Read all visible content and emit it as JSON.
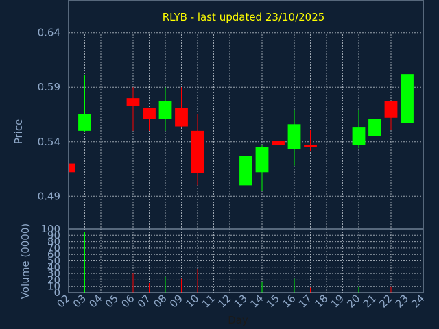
{
  "chart_data": [
    {
      "type": "candlestick",
      "title": "RLYB - last updated 23/10/2025",
      "ylabel": "Price",
      "ylim": [
        0.46,
        0.67
      ],
      "yticks": [
        0.49,
        0.54,
        0.59,
        0.64
      ],
      "ytick_labels": [
        "0.49",
        "0.54",
        "0.59",
        "0.64"
      ],
      "xlim": [
        2,
        24
      ],
      "x_ticks": [
        "02",
        "03",
        "04",
        "05",
        "06",
        "07",
        "08",
        "09",
        "10",
        "11",
        "12",
        "13",
        "14",
        "15",
        "16",
        "17",
        "18",
        "19",
        "20",
        "21",
        "22",
        "23",
        "24"
      ],
      "grid": true,
      "up_color": "#00ff00",
      "down_color": "#ff0000",
      "candles": [
        {
          "day": 2,
          "open": 0.52,
          "high": 0.52,
          "low": 0.512,
          "close": 0.512
        },
        {
          "day": 3,
          "open": 0.55,
          "high": 0.601,
          "low": 0.549,
          "close": 0.565
        },
        {
          "day": 6,
          "open": 0.58,
          "high": 0.59,
          "low": 0.55,
          "close": 0.573
        },
        {
          "day": 7,
          "open": 0.571,
          "high": 0.571,
          "low": 0.55,
          "close": 0.561
        },
        {
          "day": 8,
          "open": 0.561,
          "high": 0.59,
          "low": 0.55,
          "close": 0.577
        },
        {
          "day": 9,
          "open": 0.571,
          "high": 0.59,
          "low": 0.553,
          "close": 0.554
        },
        {
          "day": 10,
          "open": 0.55,
          "high": 0.565,
          "low": 0.5,
          "close": 0.511
        },
        {
          "day": 13,
          "open": 0.5,
          "high": 0.531,
          "low": 0.488,
          "close": 0.527
        },
        {
          "day": 14,
          "open": 0.512,
          "high": 0.537,
          "low": 0.495,
          "close": 0.535
        },
        {
          "day": 15,
          "open": 0.541,
          "high": 0.562,
          "low": 0.522,
          "close": 0.537
        },
        {
          "day": 16,
          "open": 0.533,
          "high": 0.569,
          "low": 0.518,
          "close": 0.556
        },
        {
          "day": 17,
          "open": 0.537,
          "high": 0.551,
          "low": 0.531,
          "close": 0.535
        },
        {
          "day": 20,
          "open": 0.537,
          "high": 0.569,
          "low": 0.534,
          "close": 0.553
        },
        {
          "day": 21,
          "open": 0.545,
          "high": 0.566,
          "low": 0.545,
          "close": 0.561
        },
        {
          "day": 22,
          "open": 0.577,
          "high": 0.577,
          "low": 0.551,
          "close": 0.562
        },
        {
          "day": 23,
          "open": 0.557,
          "high": 0.611,
          "low": 0.542,
          "close": 0.602
        }
      ]
    },
    {
      "type": "bar",
      "ylabel": "Volume (0000)",
      "xlabel": "Day",
      "ylim": [
        0,
        100
      ],
      "yticks": [
        0,
        10,
        20,
        30,
        40,
        50,
        60,
        70,
        80,
        90,
        100
      ],
      "ytick_labels": [
        "0",
        "10",
        "20",
        "30",
        "40",
        "50",
        "60",
        "70",
        "80",
        "90",
        "100"
      ],
      "bars": [
        {
          "day": 3,
          "value": 95,
          "direction": "up"
        },
        {
          "day": 6,
          "value": 30,
          "direction": "down"
        },
        {
          "day": 7,
          "value": 15,
          "direction": "down"
        },
        {
          "day": 8,
          "value": 25,
          "direction": "up"
        },
        {
          "day": 9,
          "value": 22,
          "direction": "down"
        },
        {
          "day": 10,
          "value": 37,
          "direction": "down"
        },
        {
          "day": 13,
          "value": 22,
          "direction": "up"
        },
        {
          "day": 14,
          "value": 17,
          "direction": "up"
        },
        {
          "day": 15,
          "value": 20,
          "direction": "down"
        },
        {
          "day": 16,
          "value": 22,
          "direction": "up"
        },
        {
          "day": 17,
          "value": 8,
          "direction": "down"
        },
        {
          "day": 20,
          "value": 10,
          "direction": "up"
        },
        {
          "day": 21,
          "value": 17,
          "direction": "up"
        },
        {
          "day": 22,
          "value": 10,
          "direction": "down"
        },
        {
          "day": 23,
          "value": 38,
          "direction": "up"
        }
      ]
    }
  ]
}
